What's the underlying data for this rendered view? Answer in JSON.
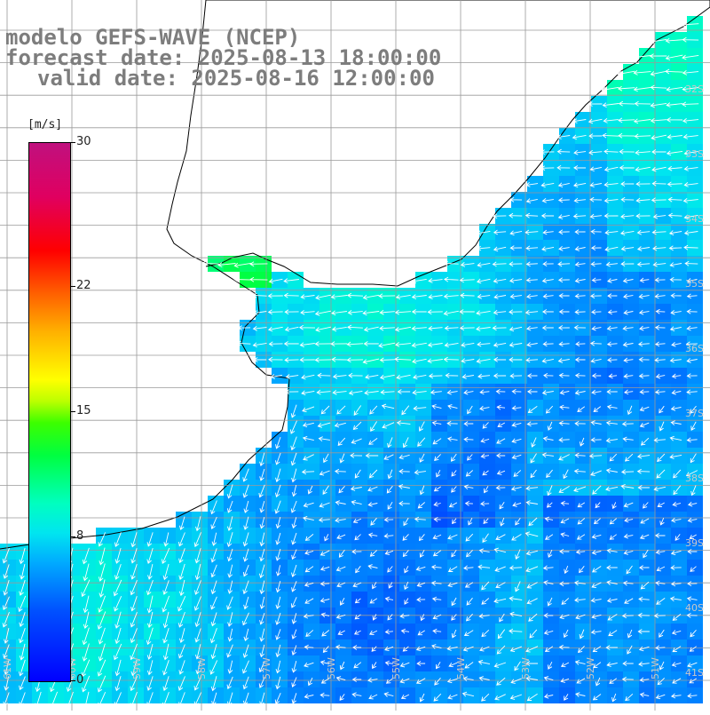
{
  "header": {
    "line1": "modelo GEFS-WAVE (NCEP)",
    "line2": "forecast date: 2025-08-13 18:00:00",
    "line3": "valid date: 2025-08-16 12:00:00"
  },
  "colorbar": {
    "units": "[m/s]",
    "ticks": [
      {
        "value": 30,
        "label": "30"
      },
      {
        "value": 22,
        "label": "22"
      },
      {
        "value": 15,
        "label": "15"
      },
      {
        "value": 8,
        "label": "8"
      },
      {
        "value": 0,
        "label": "0"
      }
    ],
    "min": 0,
    "max": 30
  },
  "grid": {
    "lat_labels": [
      "32S",
      "33S",
      "34S",
      "35S",
      "36S",
      "37S",
      "38S",
      "39S",
      "40S",
      "41S"
    ],
    "lon_labels": [
      "61W",
      "60W",
      "59W",
      "58W",
      "57W",
      "56W",
      "55W",
      "54W",
      "53W",
      "52W",
      "51W"
    ]
  },
  "colors": {
    "land": "#ffffff",
    "gridline": "#9a9a9a",
    "coast": "#000000",
    "arrow": "#ffffff"
  }
}
